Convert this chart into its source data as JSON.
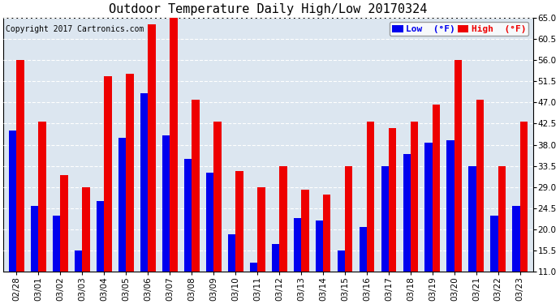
{
  "title": "Outdoor Temperature Daily High/Low 20170324",
  "copyright": "Copyright 2017 Cartronics.com",
  "legend_low": "Low  (°F)",
  "legend_high": "High  (°F)",
  "dates": [
    "02/28",
    "03/01",
    "03/02",
    "03/03",
    "03/04",
    "03/05",
    "03/06",
    "03/07",
    "03/08",
    "03/09",
    "03/10",
    "03/11",
    "03/12",
    "03/13",
    "03/14",
    "03/15",
    "03/16",
    "03/17",
    "03/18",
    "03/19",
    "03/20",
    "03/21",
    "03/22",
    "03/23"
  ],
  "lows": [
    41.0,
    25.0,
    23.0,
    15.5,
    26.0,
    39.5,
    49.0,
    40.0,
    35.0,
    32.0,
    19.0,
    13.0,
    17.0,
    22.5,
    22.0,
    15.5,
    20.5,
    33.5,
    36.0,
    38.5,
    39.0,
    33.5,
    23.0,
    25.0
  ],
  "highs": [
    56.0,
    43.0,
    31.5,
    29.0,
    52.5,
    53.0,
    63.5,
    65.0,
    47.5,
    43.0,
    32.5,
    29.0,
    33.5,
    28.5,
    27.5,
    33.5,
    43.0,
    41.5,
    43.0,
    46.5,
    56.0,
    47.5,
    33.5,
    43.0
  ],
  "bar_low_color": "#0000ee",
  "bar_high_color": "#ee0000",
  "background_color": "#ffffff",
  "plot_bg_color": "#dce6f0",
  "grid_color": "#ffffff",
  "title_color": "#000000",
  "copyright_color": "#000000",
  "ymin": 11.0,
  "ymax": 65.0,
  "yticks": [
    11.0,
    15.5,
    20.0,
    24.5,
    29.0,
    33.5,
    38.0,
    42.5,
    47.0,
    51.5,
    56.0,
    60.5,
    65.0
  ],
  "title_fontsize": 11,
  "tick_fontsize": 7.5,
  "copyright_fontsize": 7,
  "legend_fontsize": 8,
  "bar_width": 0.35,
  "figwidth": 6.9,
  "figheight": 3.75
}
